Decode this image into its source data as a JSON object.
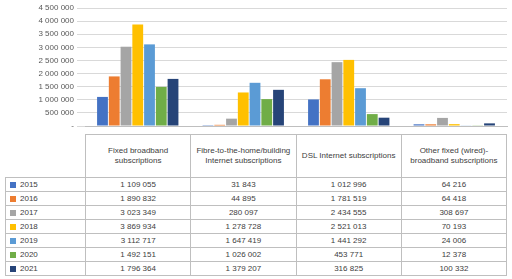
{
  "chart_data": {
    "type": "bar",
    "categories": [
      "Fixed broadband subscriptions",
      "Fibre-to-the-home/building Internet subscriptions",
      "DSL Internet subscriptions",
      "Other fixed (wired)-broadband subscriptions"
    ],
    "series": [
      {
        "name": "2015",
        "color": "#4472c4",
        "values": [
          1109055,
          31843,
          1012996,
          64216
        ],
        "value_labels": [
          "1 109 055",
          "31 843",
          "1 012 996",
          "64 216"
        ]
      },
      {
        "name": "2016",
        "color": "#ed7d31",
        "values": [
          1890832,
          44895,
          1781519,
          64418
        ],
        "value_labels": [
          "1 890 832",
          "44 895",
          "1 781 519",
          "64 418"
        ]
      },
      {
        "name": "2017",
        "color": "#a5a5a5",
        "values": [
          3023349,
          280097,
          2434555,
          308697
        ],
        "value_labels": [
          "3 023 349",
          "280 097",
          "2 434 555",
          "308 697"
        ]
      },
      {
        "name": "2018",
        "color": "#ffc000",
        "values": [
          3869934,
          1278728,
          2521013,
          70193
        ],
        "value_labels": [
          "3 869 934",
          "1 278 728",
          "2 521 013",
          "70 193"
        ]
      },
      {
        "name": "2019",
        "color": "#5b9bd5",
        "values": [
          3112717,
          1647419,
          1441292,
          24006
        ],
        "value_labels": [
          "3 112 717",
          "1 647 419",
          "1 441 292",
          "24 006"
        ]
      },
      {
        "name": "2020",
        "color": "#70ad47",
        "values": [
          1492151,
          1026002,
          453771,
          12378
        ],
        "value_labels": [
          "1 492 151",
          "1 026 002",
          "453 771",
          "12 378"
        ]
      },
      {
        "name": "2021",
        "color": "#264478",
        "values": [
          1796364,
          1379207,
          316825,
          100332
        ],
        "value_labels": [
          "1 796 364",
          "1 379 207",
          "316 825",
          "100 332"
        ]
      }
    ],
    "ylim": [
      0,
      4500000
    ],
    "yticks": [
      {
        "value": 0,
        "label": "-"
      },
      {
        "value": 500000,
        "label": "500 000"
      },
      {
        "value": 1000000,
        "label": "1 000 000"
      },
      {
        "value": 1500000,
        "label": "1 500 000"
      },
      {
        "value": 2000000,
        "label": "2 000 000"
      },
      {
        "value": 2500000,
        "label": "2 500 000"
      },
      {
        "value": 3000000,
        "label": "3 000 000"
      },
      {
        "value": 3500000,
        "label": "3 500 000"
      },
      {
        "value": 4000000,
        "label": "4 000 000"
      },
      {
        "value": 4500000,
        "label": "4 500 000"
      }
    ],
    "grid": true
  }
}
